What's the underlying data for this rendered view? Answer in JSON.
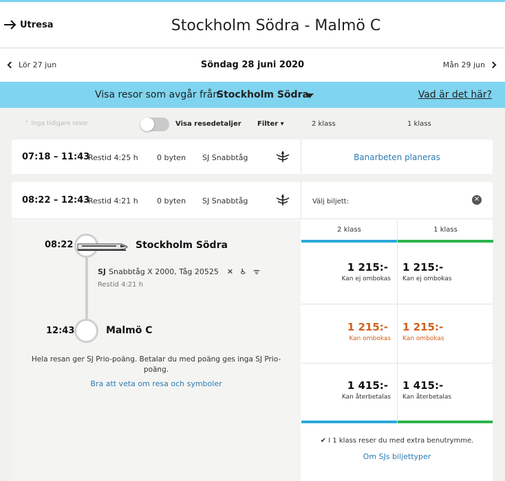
{
  "header": {
    "back_label": "Utresa",
    "title": "Stockholm Södra - Malmö C"
  },
  "dates": {
    "prev": "Lör 27 jun",
    "current": "Söndag 28 juni 2020",
    "next": "Mån 29 jun"
  },
  "departure_bar": {
    "text": "Visa resor som avgår från",
    "station": "Stockholm Södra",
    "help_link": "Vad är det här?"
  },
  "filters": {
    "no_earlier": "Inga tidigare resor",
    "show_details": "Visa resedetaljer",
    "filter": "Filter",
    "class2": "2 klass",
    "class1": "1 klass"
  },
  "trips": [
    {
      "times": "07:18 – 11:43",
      "restid": "Restid 4:25 h",
      "changes": "0 byten",
      "train_type": "SJ Snabbtåg",
      "notice": "Banarbeten planeras"
    },
    {
      "times": "08:22 – 12:43",
      "restid": "Restid 4:21 h",
      "changes": "0 byten",
      "train_type": "SJ Snabbtåg",
      "select_ticket": "Välj biljett:"
    }
  ],
  "detail": {
    "dep_time": "08:22",
    "dep_station": "Stockholm Södra",
    "train_brand": "SJ",
    "train_info": "Snabbtåg X 2000, Tåg 20525",
    "amenity_icons": "✕ ♿ ᯤ",
    "restid": "Restid 4:21 h",
    "arr_time": "12:43",
    "arr_station": "Malmö C",
    "prio_text": "Hela resan ger SJ Prio-poäng. Betalar du med poäng ges inga SJ Prio-poäng.",
    "info_link": "Bra att veta om resa och symboler"
  },
  "tickets": {
    "class2_header": "2 klass",
    "class1_header": "1 klass",
    "rows": [
      {
        "price2": "1 215:-",
        "label2": "Kan ej ombokas",
        "price1": "1 215:-",
        "label1": "Kan ej ombokas"
      },
      {
        "price2": "1 215:-",
        "label2": "Kan ombokas",
        "price1": "1 215:-",
        "label1": "Kan ombokas"
      },
      {
        "price2": "1 415:-",
        "label2": "Kan återbetalas",
        "price1": "1 415:-",
        "label1": "Kan återbetalas"
      }
    ],
    "extra_space": "I 1 klass reser du med extra benutrymme.",
    "types_link": "Om SJs biljettyper"
  },
  "colors": {
    "accent_blue": "#7fd4ef",
    "class2_bar": "#2aa8d8",
    "class1_bar": "#2bb34a",
    "rebookable_orange": "#d2601f",
    "link_blue": "#2b7bb3"
  }
}
